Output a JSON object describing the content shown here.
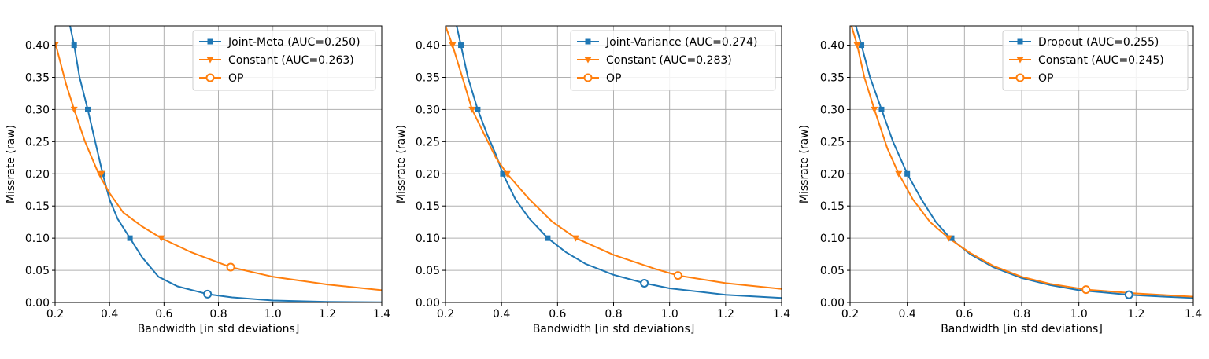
{
  "chart_data": [
    {
      "type": "line",
      "xlabel": "Bandwidth [in std deviations]",
      "ylabel": "Missrate (raw)",
      "xlim": [
        0.2,
        1.4
      ],
      "ylim": [
        0.0,
        0.43
      ],
      "xticks": [
        "0.2",
        "0.4",
        "0.6",
        "0.8",
        "1.0",
        "1.2",
        "1.4"
      ],
      "yticks": [
        "0.00",
        "0.05",
        "0.10",
        "0.15",
        "0.20",
        "0.25",
        "0.30",
        "0.35",
        "0.40"
      ],
      "grid": true,
      "legend_position": "top-right",
      "series": [
        {
          "name": "Joint-Meta (AUC=0.250)",
          "color": "#1f77b4",
          "marker": "square",
          "x": [
            0.255,
            0.27,
            0.29,
            0.32,
            0.35,
            0.375,
            0.4,
            0.43,
            0.475,
            0.52,
            0.58,
            0.65,
            0.76,
            0.85,
            1.0,
            1.2,
            1.4
          ],
          "y": [
            0.43,
            0.4,
            0.35,
            0.3,
            0.245,
            0.2,
            0.16,
            0.13,
            0.1,
            0.07,
            0.04,
            0.025,
            0.013,
            0.008,
            0.003,
            0.001,
            0.0003
          ],
          "marker_points": [
            [
              0.27,
              0.4
            ],
            [
              0.32,
              0.3
            ],
            [
              0.375,
              0.2
            ],
            [
              0.475,
              0.1
            ]
          ]
        },
        {
          "name": "Constant (AUC=0.263)",
          "color": "#ff7f0e",
          "marker": "triangle-down",
          "x": [
            0.2,
            0.24,
            0.27,
            0.31,
            0.36,
            0.4,
            0.45,
            0.52,
            0.59,
            0.7,
            0.845,
            1.0,
            1.2,
            1.4
          ],
          "y": [
            0.405,
            0.34,
            0.3,
            0.25,
            0.2,
            0.17,
            0.14,
            0.118,
            0.1,
            0.078,
            0.055,
            0.04,
            0.028,
            0.019
          ],
          "marker_points": [
            [
              0.2,
              0.4
            ],
            [
              0.27,
              0.3
            ],
            [
              0.37,
              0.2
            ],
            [
              0.59,
              0.1
            ]
          ]
        }
      ],
      "op_points": [
        {
          "series": "Joint-Meta (AUC=0.250)",
          "x": 0.76,
          "y": 0.013
        },
        {
          "series": "Constant (AUC=0.263)",
          "x": 0.845,
          "y": 0.055
        }
      ],
      "legend": [
        "Joint-Meta (AUC=0.250)",
        "Constant (AUC=0.263)",
        "OP"
      ]
    },
    {
      "type": "line",
      "xlabel": "Bandwidth [in std deviations]",
      "ylabel": "Missrate (raw)",
      "xlim": [
        0.2,
        1.4
      ],
      "ylim": [
        0.0,
        0.43
      ],
      "xticks": [
        "0.2",
        "0.4",
        "0.6",
        "0.8",
        "1.0",
        "1.2",
        "1.4"
      ],
      "yticks": [
        "0.00",
        "0.05",
        "0.10",
        "0.15",
        "0.20",
        "0.25",
        "0.30",
        "0.35",
        "0.40"
      ],
      "grid": true,
      "legend_position": "top-right",
      "series": [
        {
          "name": "Joint-Variance (AUC=0.274)",
          "color": "#1f77b4",
          "marker": "square",
          "x": [
            0.24,
            0.255,
            0.28,
            0.315,
            0.35,
            0.38,
            0.405,
            0.45,
            0.5,
            0.565,
            0.63,
            0.7,
            0.8,
            0.91,
            1.0,
            1.2,
            1.4
          ],
          "y": [
            0.43,
            0.4,
            0.35,
            0.3,
            0.26,
            0.23,
            0.2,
            0.16,
            0.13,
            0.1,
            0.078,
            0.06,
            0.043,
            0.03,
            0.022,
            0.012,
            0.007
          ],
          "marker_points": [
            [
              0.255,
              0.4
            ],
            [
              0.315,
              0.3
            ],
            [
              0.405,
              0.2
            ],
            [
              0.565,
              0.1
            ]
          ]
        },
        {
          "name": "Constant (AUC=0.283)",
          "color": "#ff7f0e",
          "marker": "triangle-down",
          "x": [
            0.2,
            0.225,
            0.26,
            0.295,
            0.34,
            0.38,
            0.42,
            0.5,
            0.58,
            0.665,
            0.8,
            0.95,
            1.03,
            1.2,
            1.4
          ],
          "y": [
            0.43,
            0.4,
            0.35,
            0.3,
            0.26,
            0.225,
            0.2,
            0.16,
            0.126,
            0.1,
            0.074,
            0.052,
            0.042,
            0.03,
            0.021
          ],
          "marker_points": [
            [
              0.225,
              0.4
            ],
            [
              0.295,
              0.3
            ],
            [
              0.42,
              0.2
            ],
            [
              0.665,
              0.1
            ]
          ]
        }
      ],
      "op_points": [
        {
          "series": "Joint-Variance (AUC=0.274)",
          "x": 0.91,
          "y": 0.03
        },
        {
          "series": "Constant (AUC=0.283)",
          "x": 1.03,
          "y": 0.042
        }
      ],
      "legend": [
        "Joint-Variance (AUC=0.274)",
        "Constant (AUC=0.283)",
        "OP"
      ]
    },
    {
      "type": "line",
      "xlabel": "Bandwidth [in std deviations]",
      "ylabel": "Missrate (raw)",
      "xlim": [
        0.2,
        1.4
      ],
      "ylim": [
        0.0,
        0.43
      ],
      "xticks": [
        "0.2",
        "0.4",
        "0.6",
        "0.8",
        "1.0",
        "1.2",
        "1.4"
      ],
      "yticks": [
        "0.00",
        "0.05",
        "0.10",
        "0.15",
        "0.20",
        "0.25",
        "0.30",
        "0.35",
        "0.40"
      ],
      "grid": true,
      "legend_position": "top-right",
      "series": [
        {
          "name": "Dropout (AUC=0.255)",
          "color": "#1f77b4",
          "marker": "square",
          "x": [
            0.22,
            0.24,
            0.27,
            0.31,
            0.35,
            0.4,
            0.45,
            0.5,
            0.55,
            0.62,
            0.7,
            0.8,
            0.9,
            1.0,
            1.175,
            1.3,
            1.4
          ],
          "y": [
            0.43,
            0.4,
            0.35,
            0.3,
            0.25,
            0.2,
            0.16,
            0.125,
            0.1,
            0.075,
            0.055,
            0.038,
            0.027,
            0.019,
            0.012,
            0.009,
            0.007
          ],
          "marker_points": [
            [
              0.24,
              0.4
            ],
            [
              0.31,
              0.3
            ],
            [
              0.4,
              0.2
            ],
            [
              0.555,
              0.1
            ]
          ]
        },
        {
          "name": "Constant (AUC=0.245)",
          "color": "#ff7f0e",
          "marker": "triangle-down",
          "x": [
            0.205,
            0.225,
            0.25,
            0.285,
            0.33,
            0.37,
            0.42,
            0.48,
            0.545,
            0.62,
            0.7,
            0.8,
            0.9,
            1.025,
            1.2,
            1.4
          ],
          "y": [
            0.43,
            0.4,
            0.35,
            0.3,
            0.24,
            0.2,
            0.16,
            0.125,
            0.1,
            0.077,
            0.057,
            0.04,
            0.029,
            0.02,
            0.014,
            0.009
          ],
          "marker_points": [
            [
              0.225,
              0.4
            ],
            [
              0.285,
              0.3
            ],
            [
              0.37,
              0.2
            ],
            [
              0.545,
              0.1
            ]
          ]
        }
      ],
      "op_points": [
        {
          "series": "Dropout (AUC=0.255)",
          "x": 1.175,
          "y": 0.012
        },
        {
          "series": "Constant (AUC=0.245)",
          "x": 1.025,
          "y": 0.02
        }
      ],
      "legend": [
        "Dropout (AUC=0.255)",
        "Constant (AUC=0.245)",
        "OP"
      ]
    }
  ]
}
